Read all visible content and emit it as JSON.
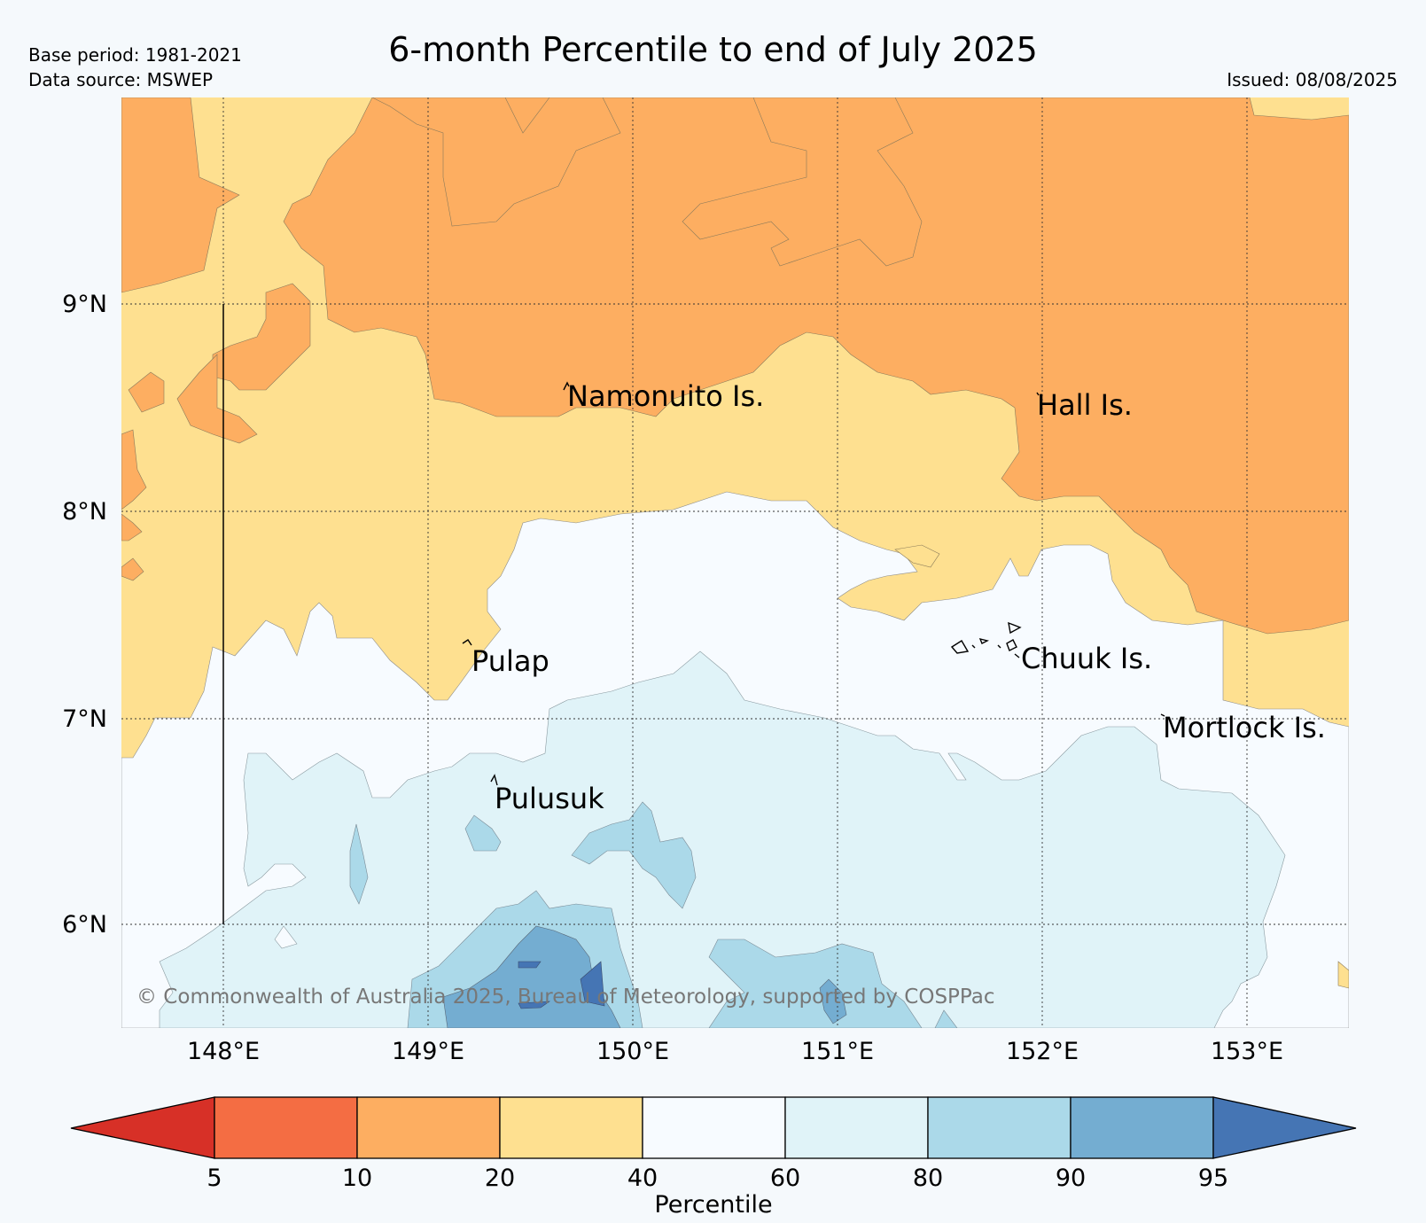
{
  "header": {
    "title": "6-month Percentile to end of July 2025",
    "base_period": "Base period: 1981-2021",
    "data_source": "Data source: MSWEP",
    "issued": "Issued: 08/08/2025"
  },
  "map": {
    "lat_labels": [
      "9°N",
      "8°N",
      "7°N",
      "6°N"
    ],
    "lon_labels": [
      "148°E",
      "149°E",
      "150°E",
      "151°E",
      "152°E",
      "153°E"
    ],
    "places": [
      {
        "name": "Namonuito Is."
      },
      {
        "name": "Hall Is."
      },
      {
        "name": "Pulap"
      },
      {
        "name": "Chuuk Is."
      },
      {
        "name": "Mortlock Is."
      },
      {
        "name": "Pulusuk"
      }
    ],
    "copyright": "© Commonwealth of Australia 2025, Bureau of Meteorology, supported by COSPPac"
  },
  "legend": {
    "title": "Percentile",
    "ticks": [
      "5",
      "10",
      "20",
      "40",
      "60",
      "80",
      "90",
      "95"
    ],
    "colors": [
      "#d73027",
      "#f46d43",
      "#fdae61",
      "#fee090",
      "#f7fbff",
      "#e0f3f8",
      "#abd9e9",
      "#74add1",
      "#4575b4"
    ]
  }
}
